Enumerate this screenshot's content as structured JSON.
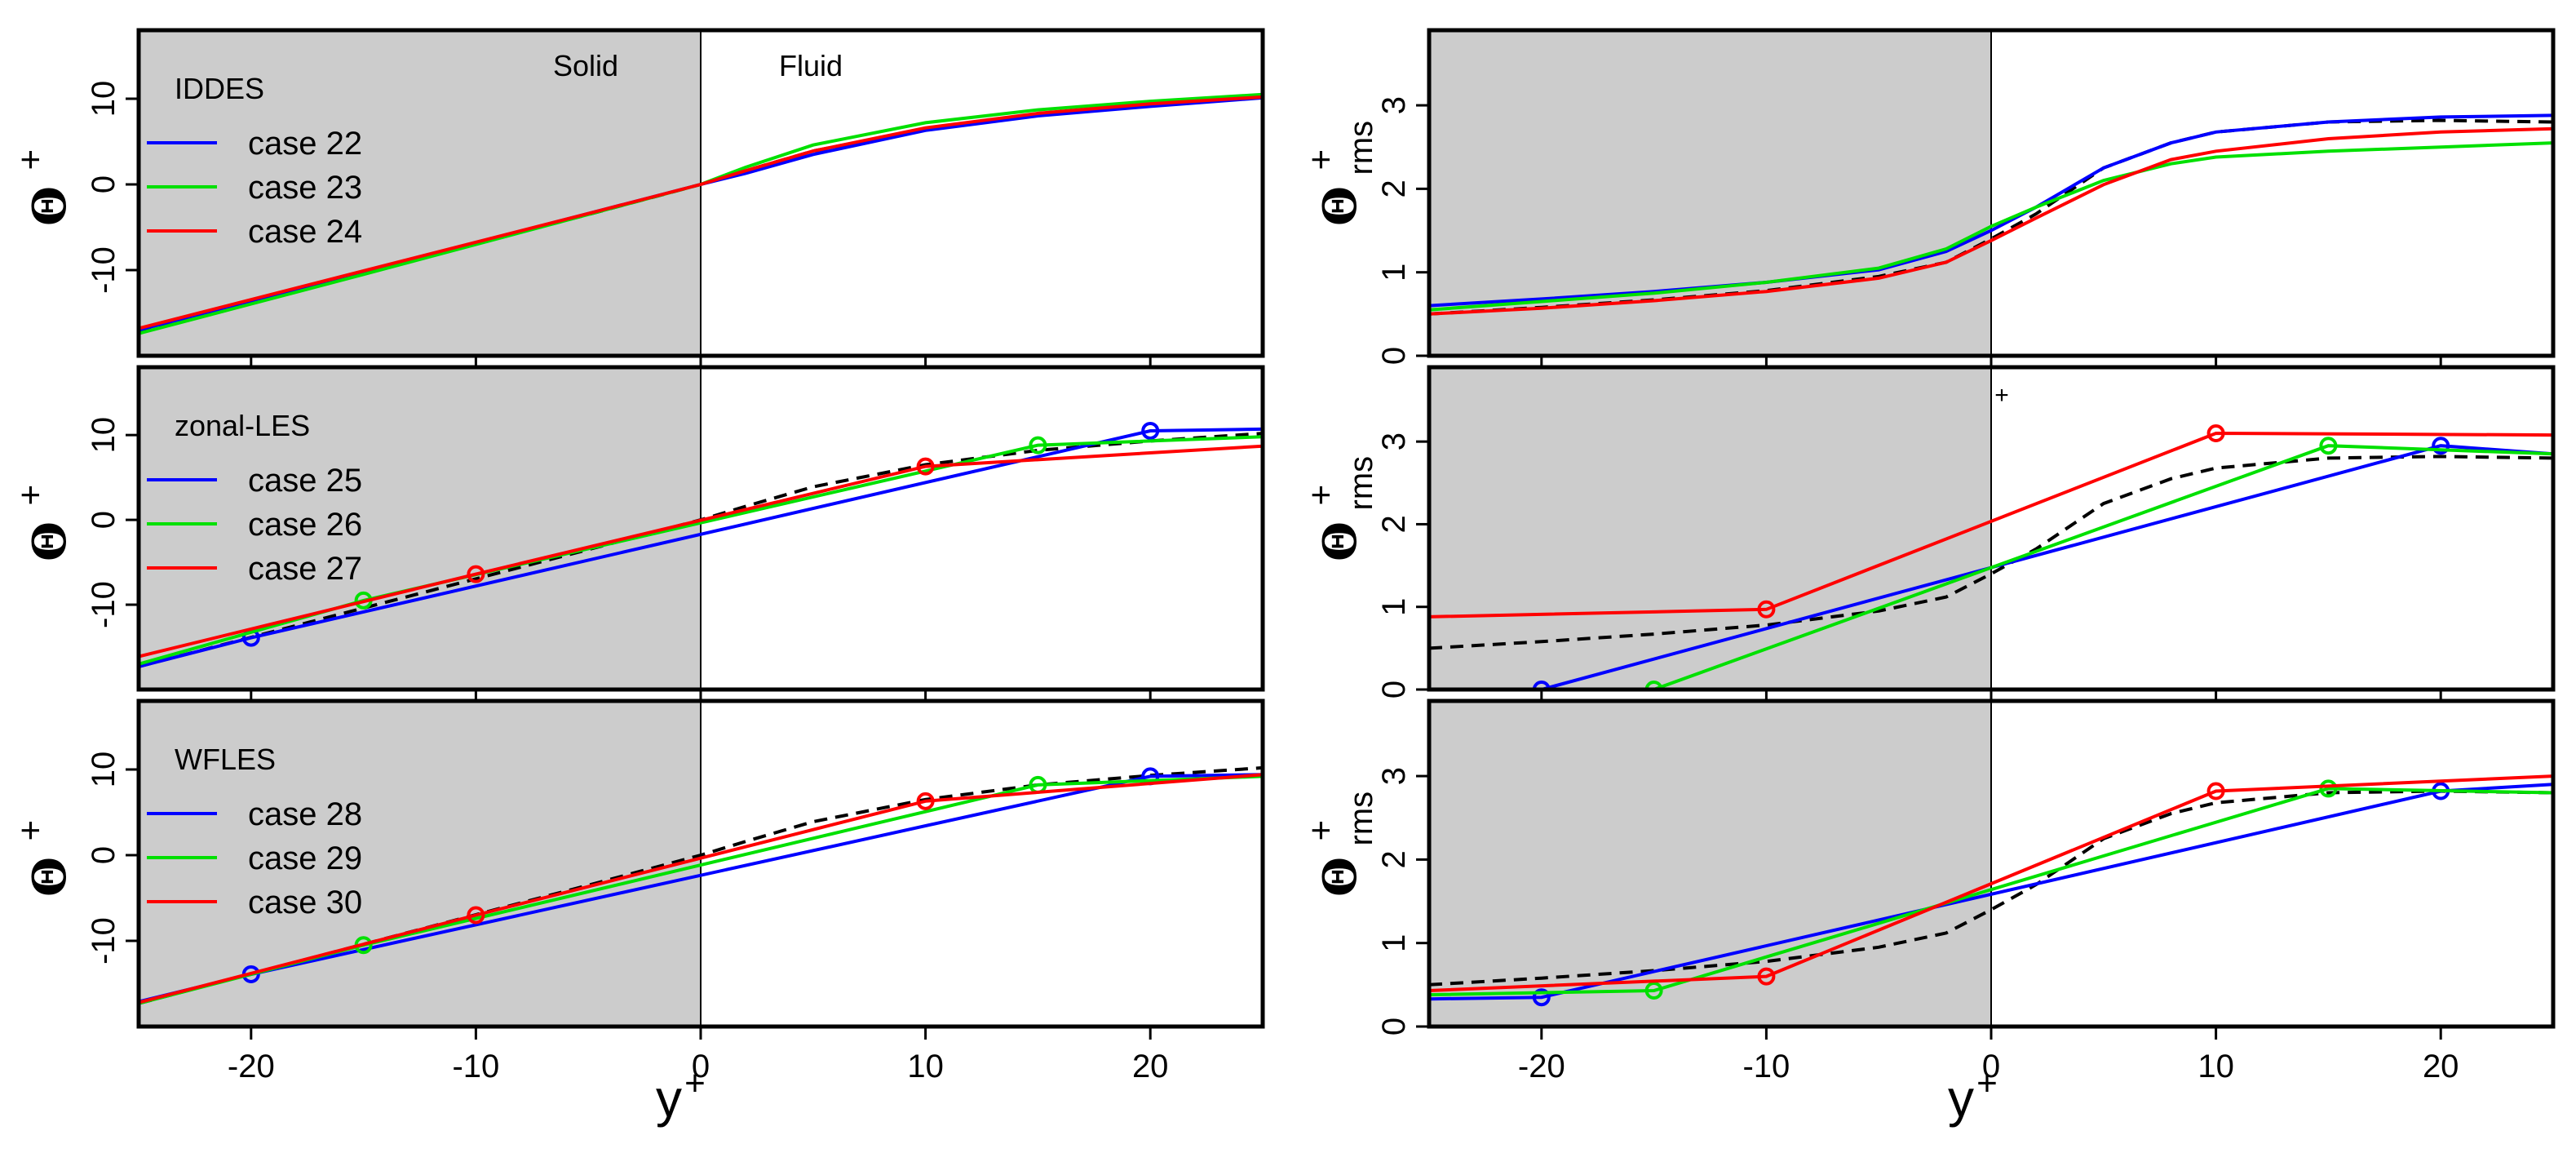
{
  "colors": {
    "solid_region": "#cccccc",
    "reference": "#000000",
    "blue": "#0000ff",
    "green": "#00e000",
    "red": "#ff0000"
  },
  "x_axis": {
    "label_main": "y",
    "label_sup": "+",
    "ticks": [
      -20,
      -10,
      0,
      10,
      20
    ],
    "tick_labels": [
      "-20",
      "-10",
      "0",
      "10",
      "20"
    ],
    "xlim": [
      -25,
      25
    ]
  },
  "left_y": {
    "label_main": "Θ",
    "label_sup": "+",
    "ticks": [
      -10,
      0,
      10
    ],
    "tick_labels": [
      "-10",
      "0",
      "10"
    ]
  },
  "right_y": {
    "label_main": "Θ",
    "label_sup": "+",
    "label_sub": "rms",
    "ticks": [
      0,
      1,
      2,
      3
    ],
    "tick_labels": [
      "0",
      "1",
      "2",
      "3"
    ]
  },
  "region_labels": {
    "solid": "Solid",
    "fluid": "Fluid"
  },
  "stray_mark": "+",
  "chart_data": [
    {
      "type": "line",
      "panel": "left-1",
      "legend_title": "IDDES",
      "xlim": [
        -25,
        25
      ],
      "ylim": [
        -20,
        18
      ],
      "reference": {
        "x": [
          -25,
          -15,
          -5,
          0,
          2,
          5,
          10,
          15,
          20,
          25
        ],
        "y": [
          -17.3,
          -10.4,
          -3.5,
          0,
          1.6,
          3.9,
          6.5,
          8.2,
          9.3,
          10.2
        ]
      },
      "series": [
        {
          "name": "case 22",
          "color": "#0000ff",
          "x": [
            -25,
            -15,
            -5,
            0,
            2,
            5,
            10,
            15,
            20,
            25
          ],
          "y": [
            -17.0,
            -10.2,
            -3.4,
            0,
            1.3,
            3.5,
            6.3,
            8.0,
            9.1,
            10.1
          ]
        },
        {
          "name": "case 23",
          "color": "#00e000",
          "x": [
            -25,
            -15,
            -5,
            0,
            2,
            5,
            10,
            15,
            20,
            25
          ],
          "y": [
            -17.4,
            -10.5,
            -3.5,
            0,
            2.0,
            4.6,
            7.2,
            8.7,
            9.7,
            10.5
          ]
        },
        {
          "name": "case 24",
          "color": "#ff0000",
          "x": [
            -25,
            -15,
            -5,
            0,
            2,
            5,
            10,
            15,
            20,
            25
          ],
          "y": [
            -16.8,
            -10.1,
            -3.4,
            0,
            1.6,
            3.9,
            6.6,
            8.3,
            9.4,
            10.2
          ]
        }
      ]
    },
    {
      "type": "line",
      "panel": "left-2",
      "legend_title": "zonal-LES",
      "xlim": [
        -25,
        25
      ],
      "ylim": [
        -20,
        18
      ],
      "reference": {
        "x": [
          -25,
          -15,
          -5,
          0,
          2,
          5,
          10,
          15,
          20,
          25
        ],
        "y": [
          -17.3,
          -10.4,
          -3.5,
          0,
          1.6,
          3.9,
          6.5,
          8.2,
          9.3,
          10.2
        ]
      },
      "series": [
        {
          "name": "case 25",
          "color": "#0000ff",
          "x": [
            -25,
            -20,
            20,
            25
          ],
          "y": [
            -17.3,
            -13.9,
            10.5,
            10.7
          ],
          "markers": [
            [
              -20,
              -13.9
            ],
            [
              20,
              10.5
            ]
          ]
        },
        {
          "name": "case 26",
          "color": "#00e000",
          "x": [
            -25,
            -15,
            15,
            25
          ],
          "y": [
            -17.0,
            -9.5,
            8.8,
            9.8
          ],
          "markers": [
            [
              -15,
              -9.5
            ],
            [
              15,
              8.8
            ]
          ]
        },
        {
          "name": "case 27",
          "color": "#ff0000",
          "x": [
            -25,
            -10,
            10,
            25
          ],
          "y": [
            -16.1,
            -6.4,
            6.3,
            8.7
          ],
          "markers": [
            [
              -10,
              -6.4
            ],
            [
              10,
              6.3
            ]
          ]
        }
      ]
    },
    {
      "type": "line",
      "panel": "left-3",
      "legend_title": "WFLES",
      "xlim": [
        -25,
        25
      ],
      "ylim": [
        -20,
        18
      ],
      "reference": {
        "x": [
          -25,
          -15,
          -5,
          0,
          2,
          5,
          10,
          15,
          20,
          25
        ],
        "y": [
          -17.3,
          -10.4,
          -3.5,
          0,
          1.6,
          3.9,
          6.5,
          8.2,
          9.3,
          10.2
        ]
      },
      "series": [
        {
          "name": "case 28",
          "color": "#0000ff",
          "x": [
            -25,
            -20,
            20,
            25
          ],
          "y": [
            -17.1,
            -13.9,
            9.2,
            9.4
          ],
          "markers": [
            [
              -20,
              -13.9
            ],
            [
              20,
              9.2
            ]
          ]
        },
        {
          "name": "case 29",
          "color": "#00e000",
          "x": [
            -25,
            -15,
            15,
            25
          ],
          "y": [
            -17.3,
            -10.5,
            8.2,
            9.2
          ],
          "markers": [
            [
              -15,
              -10.5
            ],
            [
              15,
              8.2
            ]
          ]
        },
        {
          "name": "case 30",
          "color": "#ff0000",
          "x": [
            -25,
            -10,
            10,
            25
          ],
          "y": [
            -17.2,
            -7.0,
            6.3,
            9.4
          ],
          "markers": [
            [
              -10,
              -7.0
            ],
            [
              10,
              6.3
            ]
          ]
        }
      ]
    },
    {
      "type": "line",
      "panel": "right-1",
      "xlim": [
        -25,
        25
      ],
      "ylim": [
        0,
        3.9
      ],
      "reference": {
        "x": [
          -25,
          -20,
          -15,
          -10,
          -5,
          -2,
          0,
          2,
          5,
          8,
          10,
          15,
          20,
          25
        ],
        "y": [
          0.5,
          0.58,
          0.67,
          0.78,
          0.95,
          1.12,
          1.4,
          1.7,
          2.25,
          2.55,
          2.68,
          2.8,
          2.82,
          2.8
        ]
      },
      "series": [
        {
          "color": "#0000ff",
          "x": [
            -25,
            -20,
            -15,
            -10,
            -5,
            -2,
            0,
            2,
            5,
            8,
            10,
            15,
            20,
            25
          ],
          "y": [
            0.6,
            0.68,
            0.77,
            0.88,
            1.03,
            1.25,
            1.5,
            1.78,
            2.25,
            2.55,
            2.68,
            2.8,
            2.86,
            2.88
          ]
        },
        {
          "color": "#00e000",
          "x": [
            -25,
            -20,
            -15,
            -10,
            -5,
            -2,
            0,
            2,
            5,
            8,
            10,
            15,
            20,
            25
          ],
          "y": [
            0.55,
            0.65,
            0.75,
            0.88,
            1.05,
            1.28,
            1.55,
            1.78,
            2.1,
            2.3,
            2.38,
            2.45,
            2.5,
            2.55
          ]
        },
        {
          "color": "#ff0000",
          "x": [
            -25,
            -20,
            -15,
            -10,
            -5,
            -2,
            0,
            2,
            5,
            8,
            10,
            15,
            20,
            25
          ],
          "y": [
            0.5,
            0.57,
            0.66,
            0.77,
            0.93,
            1.12,
            1.38,
            1.65,
            2.05,
            2.35,
            2.45,
            2.6,
            2.68,
            2.72
          ]
        }
      ]
    },
    {
      "type": "line",
      "panel": "right-2",
      "xlim": [
        -25,
        25
      ],
      "ylim": [
        0,
        3.9
      ],
      "reference": {
        "x": [
          -25,
          -20,
          -15,
          -10,
          -5,
          -2,
          0,
          2,
          5,
          8,
          10,
          15,
          20,
          25
        ],
        "y": [
          0.5,
          0.58,
          0.67,
          0.78,
          0.95,
          1.12,
          1.4,
          1.7,
          2.25,
          2.55,
          2.68,
          2.8,
          2.82,
          2.8
        ]
      },
      "series": [
        {
          "color": "#0000ff",
          "x": [
            -20,
            20,
            25
          ],
          "y": [
            0.0,
            2.95,
            2.85
          ],
          "markers": [
            [
              -20,
              0.0
            ],
            [
              20,
              2.95
            ]
          ]
        },
        {
          "color": "#00e000",
          "x": [
            -15,
            15,
            25
          ],
          "y": [
            0.0,
            2.95,
            2.85
          ],
          "markers": [
            [
              -15,
              0.0
            ],
            [
              15,
              2.95
            ]
          ]
        },
        {
          "color": "#ff0000",
          "x": [
            -25,
            -10,
            10,
            25
          ],
          "y": [
            0.88,
            0.97,
            3.1,
            3.08
          ],
          "markers": [
            [
              -10,
              0.97
            ],
            [
              10,
              3.1
            ]
          ]
        }
      ]
    },
    {
      "type": "line",
      "panel": "right-3",
      "xlim": [
        -25,
        25
      ],
      "ylim": [
        0,
        3.9
      ],
      "reference": {
        "x": [
          -25,
          -20,
          -15,
          -10,
          -5,
          -2,
          0,
          2,
          5,
          8,
          10,
          15,
          20,
          25
        ],
        "y": [
          0.5,
          0.58,
          0.67,
          0.78,
          0.95,
          1.12,
          1.4,
          1.7,
          2.25,
          2.55,
          2.68,
          2.8,
          2.82,
          2.8
        ]
      },
      "series": [
        {
          "color": "#0000ff",
          "x": [
            -25,
            -20,
            20,
            25
          ],
          "y": [
            0.33,
            0.35,
            2.82,
            2.9
          ],
          "markers": [
            [
              -20,
              0.35
            ],
            [
              20,
              2.82
            ]
          ]
        },
        {
          "color": "#00e000",
          "x": [
            -25,
            -15,
            15,
            25
          ],
          "y": [
            0.38,
            0.43,
            2.85,
            2.8
          ],
          "markers": [
            [
              -15,
              0.43
            ],
            [
              15,
              2.85
            ]
          ]
        },
        {
          "color": "#ff0000",
          "x": [
            -25,
            -10,
            10,
            25
          ],
          "y": [
            0.43,
            0.6,
            2.82,
            3.0
          ],
          "markers": [
            [
              -10,
              0.6
            ],
            [
              10,
              2.82
            ]
          ]
        }
      ]
    }
  ]
}
